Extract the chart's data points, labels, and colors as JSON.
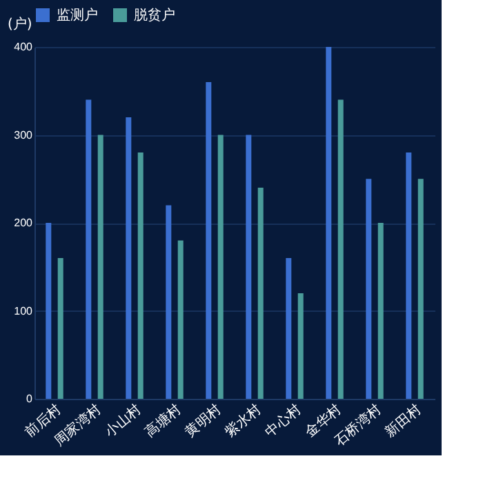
{
  "chart_data": {
    "type": "bar",
    "ylabel": "(户)",
    "categories": [
      "前后村",
      "周家湾村",
      "小山村",
      "高塘村",
      "黄明村",
      "紫水村",
      "中心村",
      "金华村",
      "石桥湾村",
      "新田村"
    ],
    "series": [
      {
        "name": "监测户",
        "color": "#3b6fd0",
        "values": [
          200,
          340,
          320,
          220,
          360,
          300,
          160,
          400,
          250,
          280
        ]
      },
      {
        "name": "脱贫户",
        "color": "#4a9c9a",
        "values": [
          160,
          300,
          280,
          180,
          300,
          240,
          120,
          340,
          200,
          250
        ]
      }
    ],
    "ylim": [
      0,
      400
    ],
    "yticks": [
      0,
      100,
      200,
      300,
      400
    ],
    "grid": "y",
    "legend": "top"
  }
}
